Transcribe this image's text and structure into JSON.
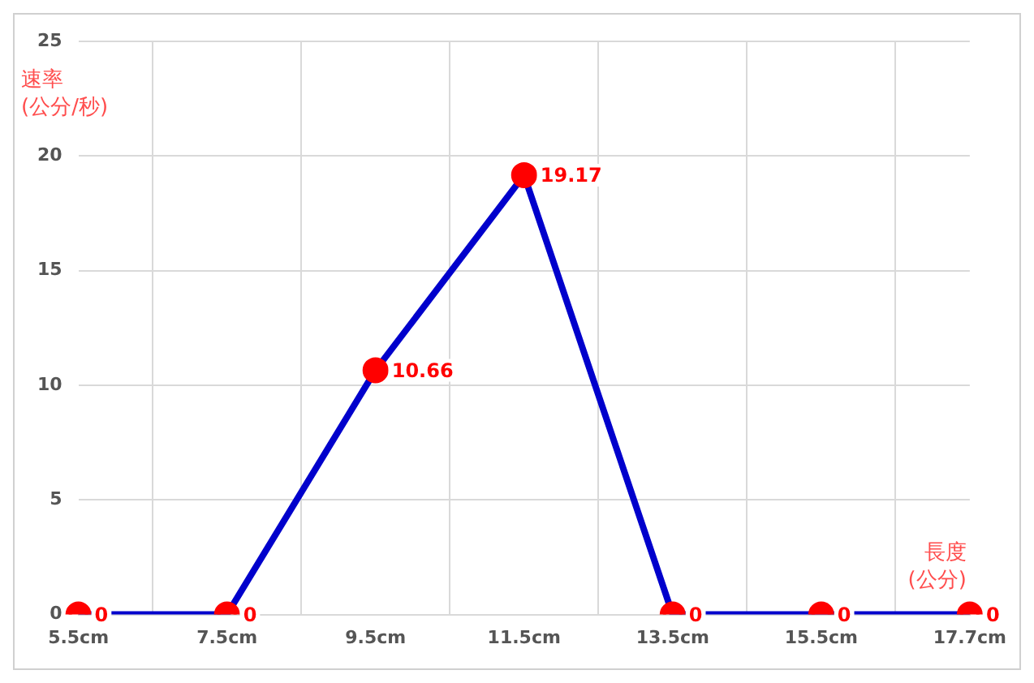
{
  "chart_data": {
    "type": "line",
    "xlabel": "長度\n(公分)",
    "ylabel": "速率\n(公分/秒)",
    "categories": [
      "5.5cm",
      "7.5cm",
      "9.5cm",
      "11.5cm",
      "13.5cm",
      "15.5cm",
      "17.7cm"
    ],
    "series": [
      {
        "color": "#0000cc",
        "colors": [
          "#ff0000",
          "#ff0000",
          "#ff0000",
          "#ff0000",
          "#ff0000",
          "#ff0000",
          "#ff0000"
        ],
        "values": [
          0,
          0,
          10.66,
          19.17,
          0,
          0,
          0
        ]
      }
    ],
    "ylim": [
      0,
      25
    ],
    "yticks": [
      0,
      5,
      10,
      15,
      20,
      25
    ],
    "grid": true,
    "legend": false,
    "marker": "circle",
    "line_style": "solid",
    "data_labels": true
  }
}
